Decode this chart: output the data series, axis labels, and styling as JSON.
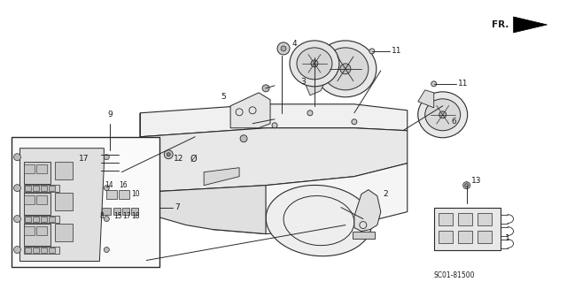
{
  "bg_color": "#ffffff",
  "fig_width": 6.4,
  "fig_height": 3.19,
  "dpi": 100,
  "diagram_code": "SC01-81500",
  "direction_label": "FR."
}
